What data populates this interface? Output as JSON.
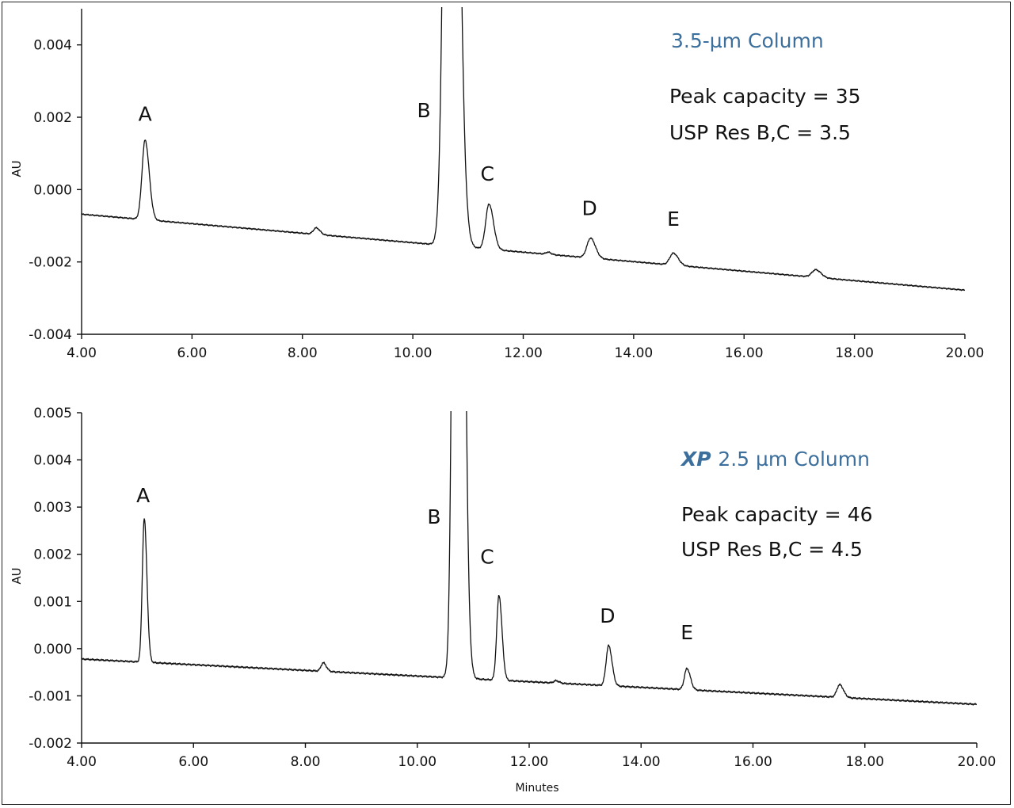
{
  "chart_data": [
    {
      "type": "line",
      "title": "3.5-µm Column",
      "title_prefix": "",
      "stats": [
        "Peak capacity = 35",
        "USP Res B,C  = 3.5"
      ],
      "ylabel": "AU",
      "xlabel": "",
      "xlim": [
        4.0,
        20.0
      ],
      "ylim": [
        -0.004,
        0.005
      ],
      "x_ticks": [
        "4.00",
        "6.00",
        "8.00",
        "10.00",
        "12.00",
        "14.00",
        "16.00",
        "18.00",
        "20.00"
      ],
      "x_tick_values": [
        4,
        6,
        8,
        10,
        12,
        14,
        16,
        18,
        20
      ],
      "y_ticks": [
        "0.004",
        "0.002",
        "0.000",
        "-0.002",
        "-0.004"
      ],
      "y_tick_values": [
        0.004,
        0.002,
        0.0,
        -0.002,
        -0.004
      ],
      "grid": false,
      "baseline": {
        "start": [
          4.0,
          -0.00068
        ],
        "end": [
          20.0,
          -0.00278
        ]
      },
      "peaks": [
        {
          "label": "A",
          "x": 5.15,
          "height": 0.0022,
          "width": 0.055,
          "show_label": true
        },
        {
          "label": "",
          "x": 8.25,
          "height": 0.00018,
          "width": 0.05,
          "show_label": false
        },
        {
          "label": "B",
          "x": 10.68,
          "height": 0.03,
          "width": 0.09,
          "show_label": true
        },
        {
          "label": "C",
          "x": 11.38,
          "height": 0.00125,
          "width": 0.06,
          "show_label": true
        },
        {
          "label": "D",
          "x": 13.22,
          "height": 0.00055,
          "width": 0.065,
          "show_label": true
        },
        {
          "label": "E",
          "x": 14.72,
          "height": 0.00033,
          "width": 0.065,
          "show_label": true
        },
        {
          "label": "",
          "x": 12.45,
          "height": 6e-05,
          "width": 0.04,
          "show_label": false
        },
        {
          "label": "",
          "x": 17.3,
          "height": 0.00021,
          "width": 0.07,
          "show_label": false
        }
      ],
      "label_positions": [
        {
          "label": "A",
          "x": 5.15,
          "y": 0.0019
        },
        {
          "label": "B",
          "x": 10.2,
          "y": 0.002
        },
        {
          "label": "C",
          "x": 11.35,
          "y": 0.00025
        },
        {
          "label": "D",
          "x": 13.2,
          "y": -0.0007
        },
        {
          "label": "E",
          "x": 14.72,
          "y": -0.001
        }
      ]
    },
    {
      "type": "line",
      "title": "2.5 µm Column",
      "title_prefix": "XP",
      "stats": [
        "Peak capacity = 46",
        "USP Res B,C  = 4.5"
      ],
      "ylabel": "AU",
      "xlabel": "Minutes",
      "xlim": [
        4.0,
        20.0
      ],
      "ylim": [
        -0.002,
        0.005
      ],
      "x_ticks": [
        "4.00",
        "6.00",
        "8.00",
        "10.00",
        "12.00",
        "14.00",
        "16.00",
        "18.00",
        "20.00"
      ],
      "x_tick_values": [
        4,
        6,
        8,
        10,
        12,
        14,
        16,
        18,
        20
      ],
      "y_ticks": [
        "0.005",
        "0.004",
        "0.003",
        "0.002",
        "0.001",
        "0.000",
        "-0.001",
        "-0.002"
      ],
      "y_tick_values": [
        0.005,
        0.004,
        0.003,
        0.002,
        0.001,
        0.0,
        -0.001,
        -0.002
      ],
      "grid": false,
      "baseline": {
        "start": [
          4.0,
          -0.00022
        ],
        "end": [
          20.0,
          -0.00118
        ]
      },
      "peaks": [
        {
          "label": "A",
          "x": 5.12,
          "height": 0.00305,
          "width": 0.035,
          "show_label": true
        },
        {
          "label": "",
          "x": 8.32,
          "height": 0.00018,
          "width": 0.04,
          "show_label": false
        },
        {
          "label": "B",
          "x": 10.72,
          "height": 0.03,
          "width": 0.065,
          "show_label": true
        },
        {
          "label": "C",
          "x": 11.46,
          "height": 0.0018,
          "width": 0.04,
          "show_label": true
        },
        {
          "label": "D",
          "x": 13.42,
          "height": 0.00085,
          "width": 0.045,
          "show_label": true
        },
        {
          "label": "E",
          "x": 14.82,
          "height": 0.00045,
          "width": 0.045,
          "show_label": true
        },
        {
          "label": "",
          "x": 12.48,
          "height": 5e-05,
          "width": 0.04,
          "show_label": false
        },
        {
          "label": "",
          "x": 17.55,
          "height": 0.00027,
          "width": 0.05,
          "show_label": false
        }
      ],
      "label_positions": [
        {
          "label": "A",
          "x": 5.1,
          "y": 0.0031
        },
        {
          "label": "B",
          "x": 10.3,
          "y": 0.00265
        },
        {
          "label": "C",
          "x": 11.25,
          "y": 0.0018
        },
        {
          "label": "D",
          "x": 13.4,
          "y": 0.00055
        },
        {
          "label": "E",
          "x": 14.82,
          "y": 0.0002
        }
      ]
    }
  ]
}
